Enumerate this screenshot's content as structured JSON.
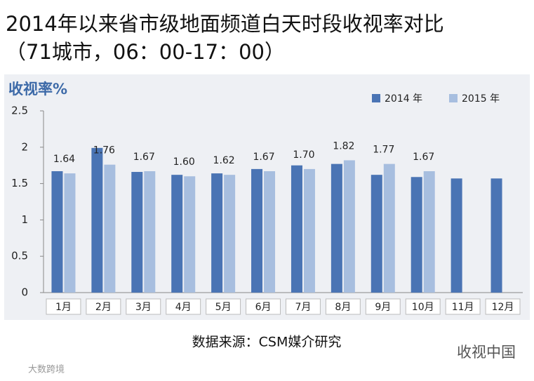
{
  "chart_data": {
    "type": "bar",
    "title": "2014年以来省市级地面频道白天时段收视率对比",
    "subtitle": "（71城市，06：00-17：00）",
    "y_label": "收视率%",
    "categories": [
      "1月",
      "2月",
      "3月",
      "4月",
      "5月",
      "6月",
      "7月",
      "8月",
      "9月",
      "10月",
      "11月",
      "12月"
    ],
    "series": [
      {
        "name": "2014 年",
        "color": "#4a74b4",
        "values": [
          1.67,
          1.99,
          1.66,
          1.62,
          1.64,
          1.7,
          1.75,
          1.77,
          1.62,
          1.59,
          1.57,
          1.57
        ]
      },
      {
        "name": "2015 年",
        "color": "#a7bedf",
        "values": [
          1.64,
          1.76,
          1.67,
          1.6,
          1.62,
          1.67,
          1.7,
          1.82,
          1.77,
          1.67,
          null,
          null
        ],
        "value_labels": [
          "1.64",
          "1.76",
          "1.67",
          "1.60",
          "1.62",
          "1.67",
          "1.70",
          "1.82",
          "1.77",
          "1.67",
          null,
          null
        ]
      }
    ],
    "ylim": [
      0,
      2.5
    ],
    "yticks": [
      0,
      0.5,
      1,
      1.5,
      2,
      2.5
    ],
    "grid": false,
    "legend": "top-right",
    "source": "数据来源：CSM媒介研究",
    "watermark": "收视中国",
    "watermark2": "大数跨境"
  }
}
